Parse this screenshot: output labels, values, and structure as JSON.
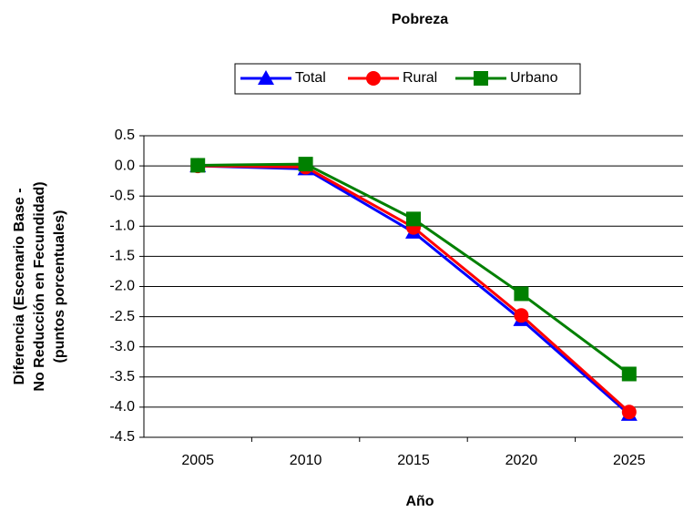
{
  "chart_data": {
    "type": "line",
    "title": "Pobreza",
    "x_label": "Año",
    "y_label": [
      "Diferencia (Escenario Base -",
      "No Reducción en Fecundidad)",
      "(puntos porcentuales)"
    ],
    "categories": [
      "2005",
      "2010",
      "2015",
      "2020",
      "2025"
    ],
    "series": [
      {
        "name": "Total",
        "color": "#0000ff",
        "marker": "triangle",
        "values": [
          0,
          -0.05,
          -1.1,
          -2.55,
          -4.12
        ]
      },
      {
        "name": "Rural",
        "color": "#ff0000",
        "marker": "circle",
        "values": [
          0,
          -0.02,
          -1.02,
          -2.48,
          -4.08
        ]
      },
      {
        "name": "Urbano",
        "color": "#008000",
        "marker": "square",
        "values": [
          0.01,
          0.03,
          -0.88,
          -2.12,
          -3.45
        ]
      }
    ],
    "ylim": [
      -4.5,
      0.5
    ],
    "yticks": [
      0.5,
      {
        "value": 0,
        "label": "0.0"
      },
      -0.5,
      {
        "value": -1,
        "label": "-1.0"
      },
      -1.5,
      {
        "value": -2,
        "label": "-2.0"
      },
      -2.5,
      {
        "value": -3,
        "label": "-3.0"
      },
      -3.5,
      {
        "value": -4,
        "label": "-4.0"
      },
      -4.5
    ],
    "grid": true
  }
}
